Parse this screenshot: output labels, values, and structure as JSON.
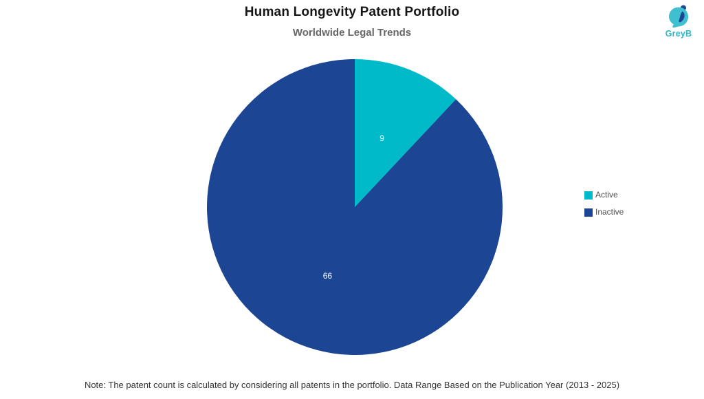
{
  "header": {
    "title": "Human Longevity Patent Portfolio",
    "subtitle": "Worldwide Legal Trends"
  },
  "logo": {
    "text": "GreyB",
    "teal": "#3fc0d0",
    "navy": "#1c4693",
    "text_color": "#2eb6c9"
  },
  "chart_data": {
    "type": "pie",
    "title": "Human Longevity Patent Portfolio",
    "subtitle": "Worldwide Legal Trends",
    "series": [
      {
        "name": "Active",
        "value": 9,
        "color": "#00b9c9"
      },
      {
        "name": "Inactive",
        "value": 66,
        "color": "#1c4693"
      }
    ],
    "total": 75,
    "start_angle_deg": 0,
    "direction": "clockwise",
    "data_label_color": "#ffffff",
    "data_label_radius_ratio": 0.5,
    "legend_position": "right",
    "background": "#ffffff"
  },
  "note": "Note: The patent count is calculated by considering all patents in the portfolio. Data Range Based on the Publication Year (2013 - 2025)"
}
